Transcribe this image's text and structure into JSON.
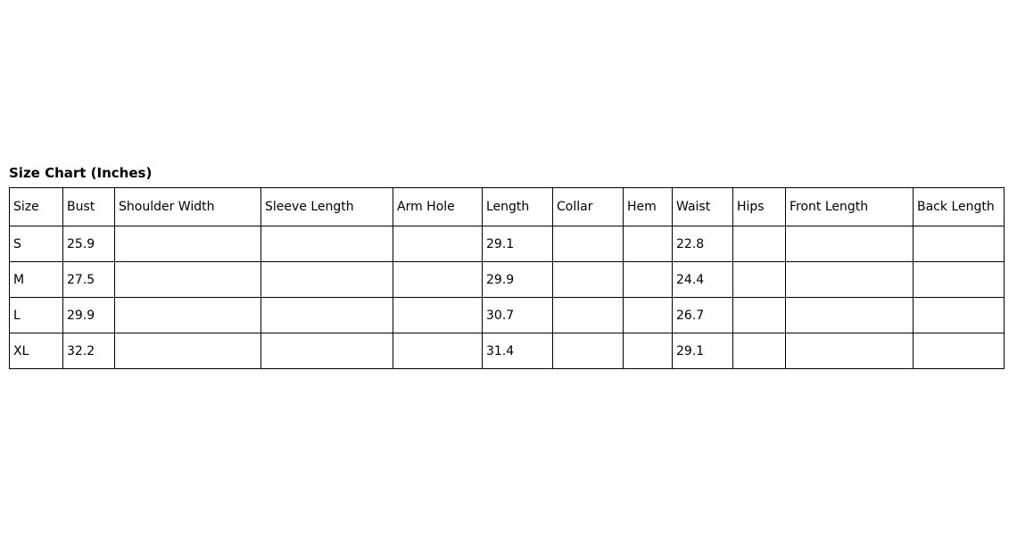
{
  "chart_data": {
    "type": "table",
    "title": "Size Chart (Inches)",
    "columns": [
      "Size",
      "Bust",
      "Shoulder Width",
      "Sleeve Length",
      "Arm Hole",
      "Length",
      "Collar",
      "Hem",
      "Waist",
      "Hips",
      "Front Length",
      "Back Length"
    ],
    "rows": [
      [
        "S",
        "25.9",
        "",
        "",
        "",
        "29.1",
        "",
        "",
        "22.8",
        "",
        "",
        ""
      ],
      [
        "M",
        "27.5",
        "",
        "",
        "",
        "29.9",
        "",
        "",
        "24.4",
        "",
        "",
        ""
      ],
      [
        "L",
        "29.9",
        "",
        "",
        "",
        "30.7",
        "",
        "",
        "26.7",
        "",
        "",
        ""
      ],
      [
        "XL",
        "32.2",
        "",
        "",
        "",
        "31.4",
        "",
        "",
        "29.1",
        "",
        "",
        ""
      ]
    ]
  },
  "colors": {
    "text": "#000000",
    "border": "#000000",
    "background": "#ffffff"
  }
}
